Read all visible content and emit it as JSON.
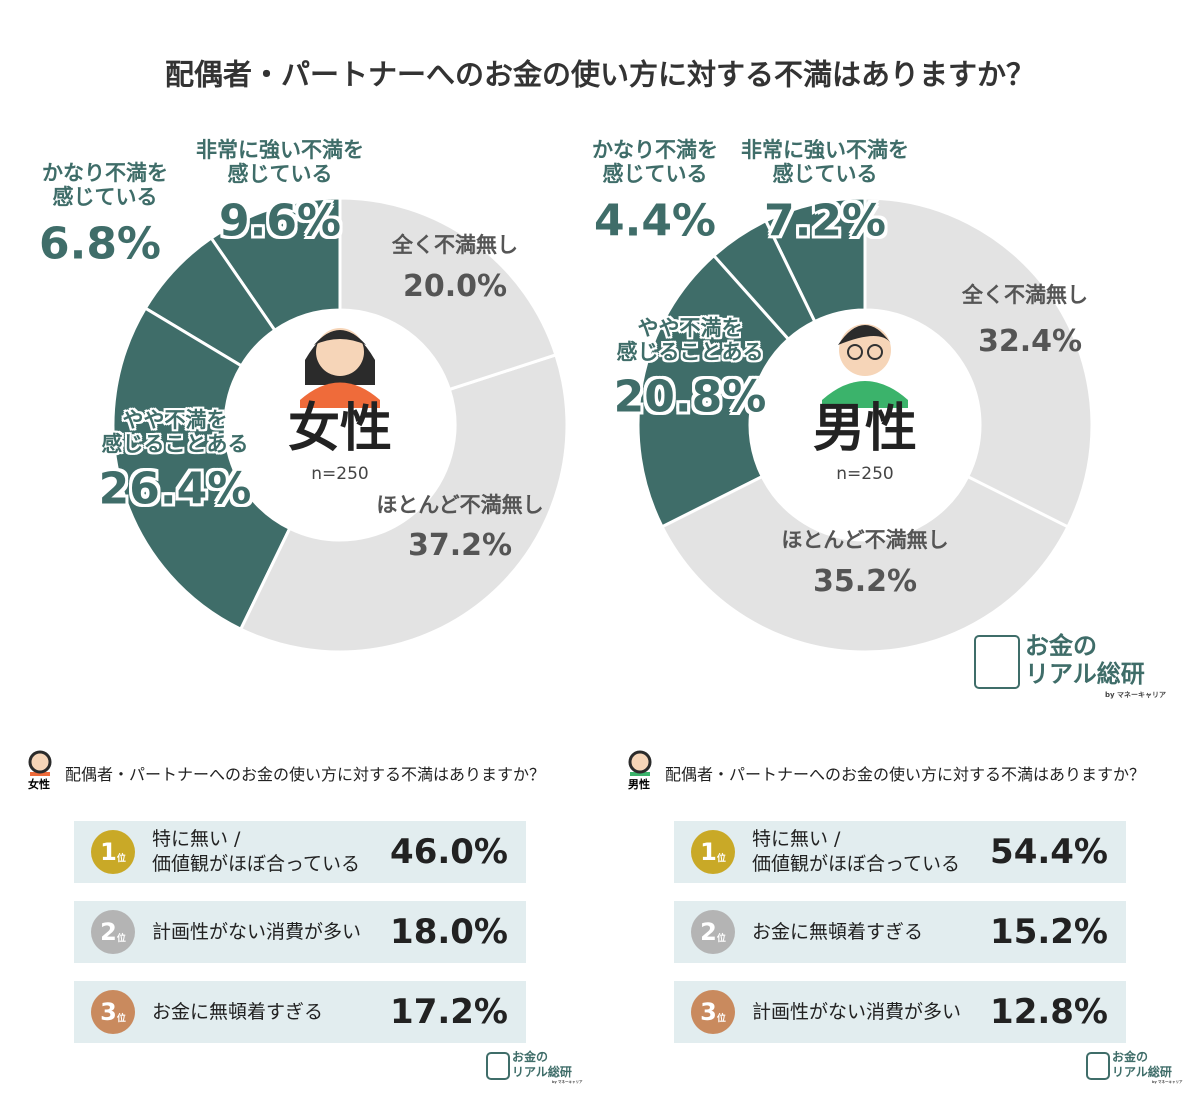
{
  "title": "配偶者・パートナーへのお金の使い方に対する不満はありますか？",
  "chart_data": [
    {
      "type": "pie",
      "center_label": "女性",
      "n_label": "n=250",
      "categories": [
        "全く不満無し",
        "ほとんど不満無し",
        "やや不満を\n感じることある",
        "かなり不満を\n感じている",
        "非常に強い不満を\n感じている"
      ],
      "values": [
        20.0,
        37.2,
        26.4,
        6.8,
        9.6
      ],
      "value_labels": [
        "20.0%",
        "37.2%",
        "26.4%",
        "6.8%",
        "9.6%"
      ],
      "colors": [
        "#e3e3e3",
        "#e3e3e3",
        "#3f6d69",
        "#3f6d69",
        "#3f6d69"
      ]
    },
    {
      "type": "pie",
      "center_label": "男性",
      "n_label": "n=250",
      "categories": [
        "全く不満無し",
        "ほとんど不満無し",
        "やや不満を\n感じることある",
        "かなり不満を\n感じている",
        "非常に強い不満を\n感じている"
      ],
      "values": [
        32.4,
        35.2,
        20.8,
        4.4,
        7.2
      ],
      "value_labels": [
        "32.4%",
        "35.2%",
        "20.8%",
        "4.4%",
        "7.2%"
      ],
      "colors": [
        "#e3e3e3",
        "#e3e3e3",
        "#3f6d69",
        "#3f6d69",
        "#3f6d69"
      ]
    }
  ],
  "rankings": [
    {
      "question": "配偶者・パートナーへのお金の使い方に対する不満はありますか？",
      "rank_unit": "位",
      "items": [
        {
          "rank": 1,
          "label": "特に無い /\n価値観がほぼ合っている",
          "value": "46.0%"
        },
        {
          "rank": 2,
          "label": "計画性がない消費が多い",
          "value": "18.0%"
        },
        {
          "rank": 3,
          "label": "お金に無頓着すぎる",
          "value": "17.2%"
        }
      ]
    },
    {
      "question": "配偶者・パートナーへのお金の使い方に対する不満はありますか？",
      "rank_unit": "位",
      "items": [
        {
          "rank": 1,
          "label": "特に無い /\n価値観がほぼ合っている",
          "value": "54.4%"
        },
        {
          "rank": 2,
          "label": "お金に無頓着すぎる",
          "value": "15.2%"
        },
        {
          "rank": 3,
          "label": "計画性がない消費が多い",
          "value": "12.8%"
        }
      ]
    }
  ],
  "logo": {
    "line1": "お金の",
    "line2": "リアル総研",
    "byline": "by マネーキャリア"
  }
}
